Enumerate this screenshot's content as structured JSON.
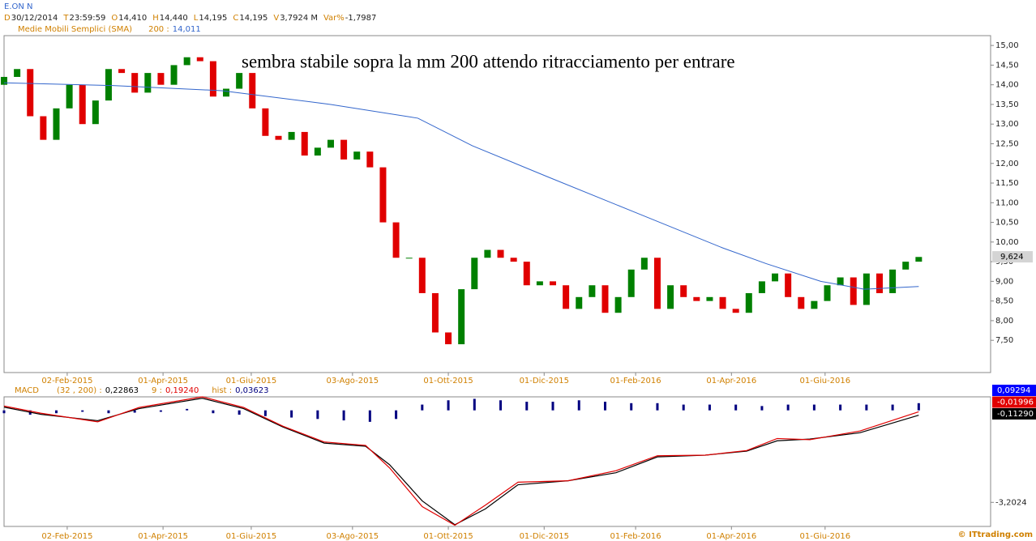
{
  "chart_data": [
    {
      "type": "candlestick",
      "title": "E.ON N",
      "quote": [
        {
          "key": "D",
          "value": "30/12/2014"
        },
        {
          "key": "T",
          "value": "23:59:59"
        },
        {
          "key": "O",
          "value": "14,410"
        },
        {
          "key": "H",
          "value": "14,440"
        },
        {
          "key": "L",
          "value": "14,195"
        },
        {
          "key": "C",
          "value": "14,195"
        },
        {
          "key": "V",
          "value": "3,7924 M"
        },
        {
          "key": "Var%",
          "value": "-1,7987"
        }
      ],
      "annotation": "sembra stabile sopra la mm 200 attendo ritracciamento per entrare",
      "x": [
        0,
        6,
        12,
        18,
        24,
        30,
        36,
        42,
        48,
        54,
        60,
        66,
        72,
        78,
        84,
        90,
        96,
        102,
        108,
        114,
        120,
        126,
        132,
        138,
        144,
        150,
        156,
        162,
        168,
        174,
        180,
        186,
        192,
        198,
        204,
        210,
        216,
        222,
        228,
        234,
        240,
        246,
        252,
        258,
        264,
        270,
        276,
        282,
        288,
        294,
        300,
        306,
        312,
        318,
        324,
        330,
        336,
        342,
        348,
        354,
        360,
        366,
        372,
        378,
        384,
        390,
        396,
        402,
        408,
        414,
        420
      ],
      "open": [
        14.0,
        14.2,
        14.4,
        13.2,
        12.6,
        13.4,
        14.0,
        13.0,
        13.6,
        14.4,
        14.3,
        13.8,
        14.3,
        14.0,
        14.5,
        14.7,
        14.6,
        13.7,
        13.9,
        14.3,
        13.4,
        12.7,
        12.6,
        12.8,
        12.2,
        12.4,
        12.6,
        12.1,
        12.3,
        11.9,
        10.5,
        9.6,
        9.6,
        8.7,
        7.7,
        7.4,
        8.8,
        9.6,
        9.8,
        9.6,
        9.5,
        8.9,
        9.0,
        8.9,
        8.3,
        8.6,
        8.9,
        8.2,
        8.6,
        9.3,
        9.6,
        8.3,
        8.9,
        8.6,
        8.5,
        8.6,
        8.3,
        8.2,
        8.7,
        9.0,
        9.2,
        8.6,
        8.3,
        8.5,
        8.9,
        9.1,
        8.4,
        9.2,
        8.7,
        9.3,
        9.5
      ],
      "close": [
        14.2,
        14.4,
        13.2,
        12.6,
        13.4,
        14.0,
        13.0,
        13.6,
        14.4,
        14.3,
        13.8,
        14.3,
        14.0,
        14.5,
        14.7,
        14.6,
        13.7,
        13.9,
        14.3,
        13.4,
        12.7,
        12.6,
        12.8,
        12.2,
        12.4,
        12.6,
        12.1,
        12.3,
        11.9,
        10.5,
        9.6,
        9.6,
        8.7,
        7.7,
        7.4,
        8.8,
        9.6,
        9.8,
        9.6,
        9.5,
        8.9,
        9.0,
        8.9,
        8.3,
        8.6,
        8.9,
        8.2,
        8.6,
        9.3,
        9.6,
        8.3,
        8.9,
        8.6,
        8.5,
        8.6,
        8.3,
        8.2,
        8.7,
        9.0,
        9.2,
        8.6,
        8.3,
        8.5,
        8.9,
        9.1,
        8.4,
        9.2,
        8.7,
        9.3,
        9.5,
        9.62
      ],
      "up_color": "#008000",
      "down_color": "#e00000",
      "series": [
        {
          "name": "Medie Mobili Semplici (SMA)",
          "period": "200 :",
          "value_label": "14,011",
          "color": "#3366cc",
          "x": [
            0,
            50,
            100,
            150,
            190,
            215,
            250,
            290,
            330,
            350,
            375,
            395,
            420
          ],
          "values": [
            14.05,
            13.98,
            13.85,
            13.5,
            13.15,
            12.45,
            11.65,
            10.75,
            9.85,
            9.45,
            9.0,
            8.8,
            8.87
          ]
        }
      ],
      "last_value": {
        "value": 9.624,
        "label": "9,624"
      },
      "xlim": [
        0,
        453
      ],
      "xticks": [
        {
          "value": 29,
          "label": "02-Feb-2015"
        },
        {
          "value": 73,
          "label": "01-Apr-2015"
        },
        {
          "value": 113.5,
          "label": "01-Giu-2015"
        },
        {
          "value": 160,
          "label": "03-Ago-2015"
        },
        {
          "value": 204,
          "label": "01-Ott-2015"
        },
        {
          "value": 248,
          "label": "01-Dic-2015"
        },
        {
          "value": 290,
          "label": "01-Feb-2016"
        },
        {
          "value": 334,
          "label": "01-Apr-2016"
        },
        {
          "value": 377,
          "label": "01-Giu-2016"
        }
      ],
      "ylim": [
        6.68,
        15.25
      ],
      "yticks": [
        {
          "value": 7.5,
          "label": "7,50"
        },
        {
          "value": 8,
          "label": "8,00"
        },
        {
          "value": 8.5,
          "label": "8,50"
        },
        {
          "value": 9,
          "label": "9,00"
        },
        {
          "value": 9.5,
          "label": "9,50"
        },
        {
          "value": 10,
          "label": "10,00"
        },
        {
          "value": 10.5,
          "label": "10,50"
        },
        {
          "value": 11,
          "label": "11,00"
        },
        {
          "value": 11.5,
          "label": "11,50"
        },
        {
          "value": 12,
          "label": "12,00"
        },
        {
          "value": 12.5,
          "label": "12,50"
        },
        {
          "value": 13,
          "label": "13,00"
        },
        {
          "value": 13.5,
          "label": "13,50"
        },
        {
          "value": 14,
          "label": "14,00"
        },
        {
          "value": 14.5,
          "label": "14,50"
        },
        {
          "value": 15,
          "label": "15,00"
        }
      ]
    },
    {
      "type": "macd",
      "title": "MACD",
      "series": [
        {
          "name": "(32 , 200) :",
          "value_label": "0,22863",
          "color": "#000000",
          "x": [
            0,
            17,
            43,
            62,
            91,
            110,
            128,
            147,
            166,
            177,
            192,
            207,
            221,
            236,
            259,
            281,
            300,
            322,
            341,
            355,
            370,
            393,
            420
          ],
          "values": [
            0.11,
            -0.14,
            -0.36,
            0.06,
            0.42,
            0.06,
            -0.58,
            -1.14,
            -1.25,
            -1.89,
            -3.15,
            -3.98,
            -3.43,
            -2.59,
            -2.45,
            -2.17,
            -1.62,
            -1.56,
            -1.42,
            -1.06,
            -1.0,
            -0.78,
            -0.17
          ]
        },
        {
          "name": "9 :",
          "value_label": "0,19240",
          "color": "#e00000",
          "x": [
            0,
            17,
            43,
            62,
            91,
            110,
            128,
            147,
            166,
            177,
            192,
            207,
            221,
            236,
            259,
            281,
            300,
            322,
            341,
            355,
            370,
            393,
            420
          ],
          "values": [
            0.15,
            -0.1,
            -0.4,
            0.1,
            0.47,
            0.1,
            -0.55,
            -1.1,
            -1.22,
            -2.0,
            -3.35,
            -4.0,
            -3.3,
            -2.5,
            -2.45,
            -2.1,
            -1.58,
            -1.56,
            -1.4,
            -0.98,
            -1.02,
            -0.72,
            -0.05
          ]
        }
      ],
      "hist": {
        "name": "hist :",
        "value_label": "0,03623",
        "color": "#000080",
        "x": [
          0,
          12,
          24,
          36,
          48,
          60,
          72,
          84,
          96,
          108,
          120,
          132,
          144,
          156,
          168,
          180,
          192,
          204,
          216,
          228,
          240,
          252,
          264,
          276,
          288,
          300,
          312,
          324,
          336,
          348,
          360,
          372,
          384,
          396,
          408,
          420
        ],
        "values": [
          -0.1,
          -0.15,
          -0.1,
          -0.05,
          -0.1,
          -0.08,
          -0.05,
          0.05,
          -0.1,
          -0.15,
          -0.2,
          -0.25,
          -0.3,
          -0.35,
          -0.4,
          -0.3,
          0.2,
          0.35,
          0.4,
          0.35,
          0.3,
          0.3,
          0.35,
          0.3,
          0.25,
          0.25,
          0.2,
          0.2,
          0.2,
          0.15,
          0.2,
          0.2,
          0.2,
          0.2,
          0.2,
          0.25
        ]
      },
      "badges": [
        {
          "label": "0,09294",
          "color": "#0000ff"
        },
        {
          "label": "-0,01996",
          "color": "#e00000"
        },
        {
          "label": "-0,11290",
          "color": "#000000"
        }
      ],
      "xlim": [
        0,
        453
      ],
      "ylim": [
        -4.04,
        0.47
      ],
      "yticks": [
        {
          "value": -3.2024,
          "label": "-3,2024"
        }
      ],
      "credit": "© ITtrading.com"
    }
  ]
}
